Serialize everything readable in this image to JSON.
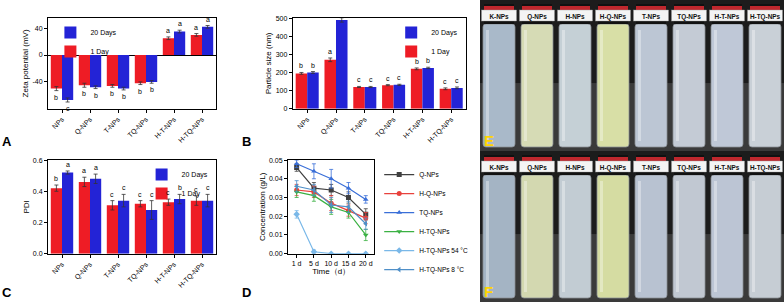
{
  "chart_data": [
    {
      "type": "bar",
      "panel": "A",
      "y_label": "Zeta potential (mV)",
      "categories": [
        "NPs",
        "Q-NPs",
        "T-NPs",
        "TQ-NPs",
        "H-T-NPs",
        "H-TQ-NPs"
      ],
      "series": [
        {
          "name": "1 Day",
          "color": "#ee1c25",
          "values": [
            -50,
            -45,
            -46,
            -42,
            25,
            30
          ],
          "errors": [
            3,
            3,
            2,
            2,
            2,
            2
          ],
          "letters": [
            "b",
            "b",
            "b",
            "b",
            "a",
            "a"
          ]
        },
        {
          "name": "20 Days",
          "color": "#2323d6",
          "values": [
            -67,
            -48,
            -50,
            -40,
            35,
            42
          ],
          "errors": [
            3,
            2,
            2,
            2,
            2,
            2
          ],
          "letters": [
            "c",
            "b",
            "b",
            "b",
            "a",
            "a"
          ]
        }
      ],
      "ylim": [
        -80,
        55
      ],
      "yticks": [
        -40,
        0,
        40
      ],
      "grid": false,
      "legend": "upper left"
    },
    {
      "type": "bar",
      "panel": "B",
      "y_label": "Particle size (nm)",
      "categories": [
        "NPs",
        "Q-NPs",
        "T-NPs",
        "TQ-NPs",
        "H-T-NPs",
        "H-TQ-NPs"
      ],
      "series": [
        {
          "name": "1 Day",
          "color": "#ee1c25",
          "values": [
            195,
            270,
            120,
            130,
            220,
            110
          ],
          "errors": [
            5,
            10,
            3,
            3,
            5,
            5
          ],
          "letters": [
            "b",
            "a",
            "c",
            "c",
            "b",
            "c"
          ]
        },
        {
          "name": "20 Days",
          "color": "#2323d6",
          "values": [
            200,
            490,
            120,
            132,
            225,
            115
          ],
          "errors": [
            5,
            12,
            3,
            3,
            4,
            5
          ],
          "letters": [
            "b",
            "a",
            "c",
            "c",
            "b",
            "c"
          ]
        }
      ],
      "ylim": [
        0,
        500
      ],
      "yticks": [
        0,
        100,
        200,
        300,
        400,
        500
      ],
      "grid": false,
      "legend": "upper right"
    },
    {
      "type": "bar",
      "panel": "C",
      "y_label": "PDI",
      "categories": [
        "NPs",
        "Q-NPs",
        "T-NPs",
        "TQ-NPs",
        "H-T-NPs",
        "H-TQ-NPs"
      ],
      "series": [
        {
          "name": "1 Day",
          "color": "#ee1c25",
          "values": [
            0.42,
            0.46,
            0.31,
            0.32,
            0.33,
            0.34
          ],
          "errors": [
            0.02,
            0.03,
            0.03,
            0.02,
            0.02,
            0.03
          ],
          "letters": [
            "b",
            "a",
            "c",
            "c",
            "c",
            "c"
          ]
        },
        {
          "name": "20 Days",
          "color": "#2323d6",
          "values": [
            0.52,
            0.48,
            0.34,
            0.28,
            0.35,
            0.34
          ],
          "errors": [
            0.01,
            0.03,
            0.04,
            0.06,
            0.03,
            0.04
          ],
          "letters": [
            "a",
            "a",
            "c",
            "c",
            "b",
            "c"
          ]
        }
      ],
      "ylim": [
        0,
        0.6
      ],
      "yticks": [
        {
          "value": 0,
          "label": "0.0"
        },
        0.2,
        0.4,
        0.6
      ],
      "grid": false,
      "legend": "upper right"
    },
    {
      "type": "line",
      "panel": "D",
      "x_label": "Time（d）",
      "y_label": "Concentration (g/L)",
      "categories": [
        "1 d",
        "5 d",
        "10 d",
        "15 d",
        "20 d"
      ],
      "line_style": "solid",
      "series": [
        {
          "name": "Q-NPs",
          "color": "#404040",
          "marker": "square",
          "values": [
            0.046,
            0.035,
            0.034,
            0.03,
            0.021
          ],
          "errors": [
            0.002,
            0.003,
            0.003,
            0.003,
            0.003
          ]
        },
        {
          "name": "H-Q-NPs",
          "color": "#e8413c",
          "marker": "circle",
          "values": [
            0.034,
            0.033,
            0.027,
            0.023,
            0.019
          ],
          "errors": [
            0.003,
            0.003,
            0.004,
            0.003,
            0.003
          ]
        },
        {
          "name": "TQ-NPs",
          "color": "#3a6fd8",
          "marker": "triangle-up",
          "values": [
            0.048,
            0.044,
            0.04,
            0.035,
            0.029
          ],
          "errors": [
            0.002,
            0.004,
            0.005,
            0.003,
            0.002
          ]
        },
        {
          "name": "H-TQ-NPs",
          "color": "#3bb143",
          "marker": "triangle-down",
          "values": [
            0.033,
            0.031,
            0.025,
            0.022,
            0.01
          ],
          "errors": [
            0.003,
            0.003,
            0.004,
            0.003,
            0.003
          ]
        },
        {
          "name": "H-TQ-NPs 54 °C",
          "color": "#7ab8e8",
          "marker": "diamond",
          "values": [
            0.021,
            0.001,
            0,
            0,
            0
          ],
          "errors": [
            0.002,
            0.001,
            0,
            0,
            0
          ]
        },
        {
          "name": "H-TQ-NPs 8 °C",
          "color": "#4f8fc8",
          "marker": "triangle-left",
          "values": [
            0.036,
            0.034,
            0.026,
            0.025,
            0.016
          ],
          "errors": [
            0.003,
            0.003,
            0.004,
            0.003,
            0.003
          ]
        }
      ],
      "ylim": [
        0,
        0.05
      ],
      "yticks": [
        {
          "value": 0,
          "label": "0.00"
        },
        {
          "value": 0.01,
          "label": "0.01"
        },
        {
          "value": 0.02,
          "label": "0.02"
        },
        {
          "value": 0.03,
          "label": "0.03"
        },
        {
          "value": 0.04,
          "label": "0.04"
        },
        {
          "value": 0.05,
          "label": "0.05"
        }
      ],
      "grid": false,
      "legend": "right"
    }
  ],
  "photos": [
    {
      "panel": "E",
      "labels": [
        "K-NPs",
        "Q-NPs",
        "H-NPs",
        "H-Q-NPs",
        "T-NPs",
        "TQ-NPs",
        "H-T-NPs",
        "H-TQ-NPs"
      ],
      "colors": [
        "#a9b9c9",
        "#d6dbb5",
        "#c5d0d6",
        "#d8dfa6",
        "#bcc6d4",
        "#c4cbd5",
        "#bfc8d7",
        "#c9d0d7"
      ]
    },
    {
      "panel": "F",
      "labels": [
        "K-NPs",
        "Q-NPs",
        "H-NPs",
        "H-Q-NPs",
        "T-NPs",
        "TQ-NPs",
        "H-T-NPs",
        "H-TQ-NPs"
      ],
      "colors": [
        "#a4b4c4",
        "#d3d8b0",
        "#c2ccd3",
        "#d5dca2",
        "#b8c2d1",
        "#c1c8d2",
        "#bcc5d4",
        "#c6cdd4"
      ]
    }
  ]
}
